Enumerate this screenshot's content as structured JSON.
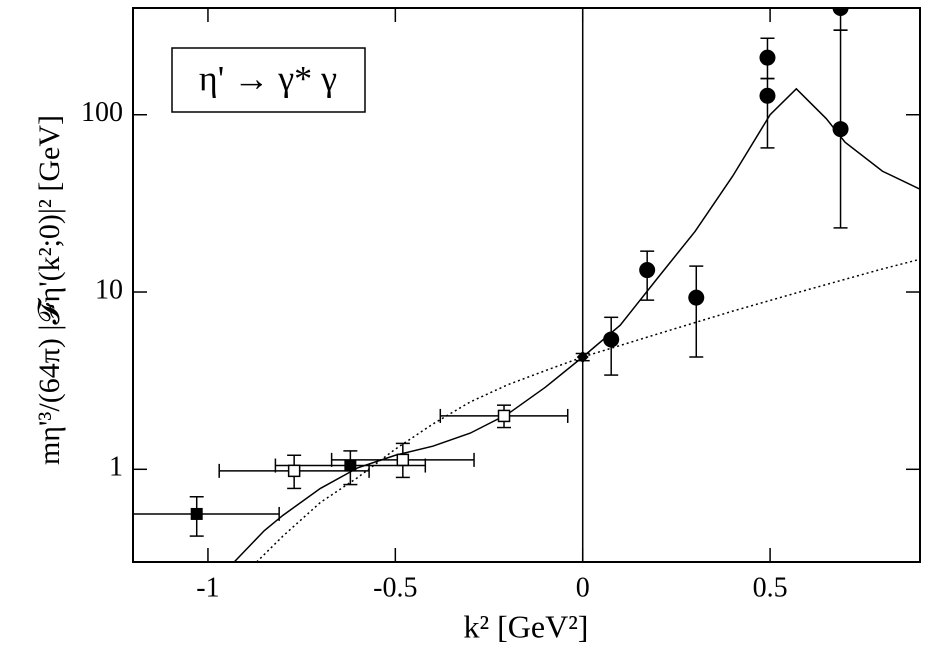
{
  "chart_data": {
    "type": "scatter",
    "xlabel": "k²  [GeV²]",
    "ylabel": "mη'³/(64π) |𝓕η'(k²;0)|²  [GeV]",
    "annotation": "η' → γ* γ",
    "xlim": [
      -1.2,
      0.9
    ],
    "ylim": [
      0.3,
      400
    ],
    "yscale": "log",
    "xticks": [
      -1,
      -0.5,
      0,
      0.5
    ],
    "yticks": [
      1,
      10,
      100
    ],
    "series": [
      {
        "marker": "filled-square",
        "color": "#000000",
        "x": [
          -1.03,
          -0.62
        ],
        "values": [
          0.56,
          1.05
        ],
        "yerr_low": [
          0.42,
          0.82
        ],
        "yerr_high": [
          0.7,
          1.27
        ],
        "xerr": [
          0.22,
          0.2
        ]
      },
      {
        "marker": "open-square",
        "color": "#000000",
        "x": [
          -0.77,
          -0.48,
          -0.21
        ],
        "values": [
          0.98,
          1.13,
          2.0
        ],
        "yerr_low": [
          0.78,
          0.9,
          1.72
        ],
        "yerr_high": [
          1.2,
          1.4,
          2.3
        ],
        "xerr": [
          0.2,
          0.19,
          0.17
        ]
      },
      {
        "marker": "diamond",
        "color": "#000000",
        "x": [
          0
        ],
        "values": [
          4.3
        ],
        "yerr_low": [
          4.1
        ],
        "yerr_high": [
          4.5
        ],
        "xerr": [
          0
        ]
      },
      {
        "marker": "circle",
        "color": "#000000",
        "x": [
          0.076,
          0.172,
          0.303,
          0.493,
          0.493,
          0.688,
          0.688
        ],
        "values": [
          5.4,
          13.3,
          9.3,
          210,
          128,
          400,
          83
        ],
        "yerr_low": [
          3.4,
          9,
          4.3,
          160,
          65,
          300,
          23
        ],
        "yerr_high": [
          7.2,
          17,
          14,
          270,
          160,
          null,
          300
        ],
        "xerr": [
          0,
          0,
          0,
          0,
          0,
          0,
          0
        ]
      }
    ],
    "curves": [
      {
        "style": "solid",
        "color": "#000000",
        "x": [
          -0.93,
          -0.85,
          -0.8,
          -0.7,
          -0.6,
          -0.5,
          -0.4,
          -0.3,
          -0.2,
          -0.1,
          0,
          0.1,
          0.2,
          0.3,
          0.4,
          0.5,
          0.57,
          0.65,
          0.7,
          0.8,
          0.9
        ],
        "values": [
          0.3,
          0.45,
          0.55,
          0.78,
          1.02,
          1.2,
          1.35,
          1.6,
          2.05,
          2.9,
          4.3,
          6.5,
          12,
          22,
          45,
          100,
          140,
          95,
          70,
          48,
          38
        ]
      },
      {
        "style": "dotted",
        "color": "#000000",
        "x": [
          -0.87,
          -0.8,
          -0.7,
          -0.6,
          -0.5,
          -0.4,
          -0.3,
          -0.2,
          -0.1,
          0,
          0.2,
          0.4,
          0.6,
          0.8,
          0.9
        ],
        "values": [
          0.3,
          0.42,
          0.65,
          0.9,
          1.3,
          1.8,
          2.4,
          3.0,
          3.6,
          4.3,
          5.8,
          7.8,
          10.3,
          13.5,
          15.3
        ]
      }
    ]
  }
}
